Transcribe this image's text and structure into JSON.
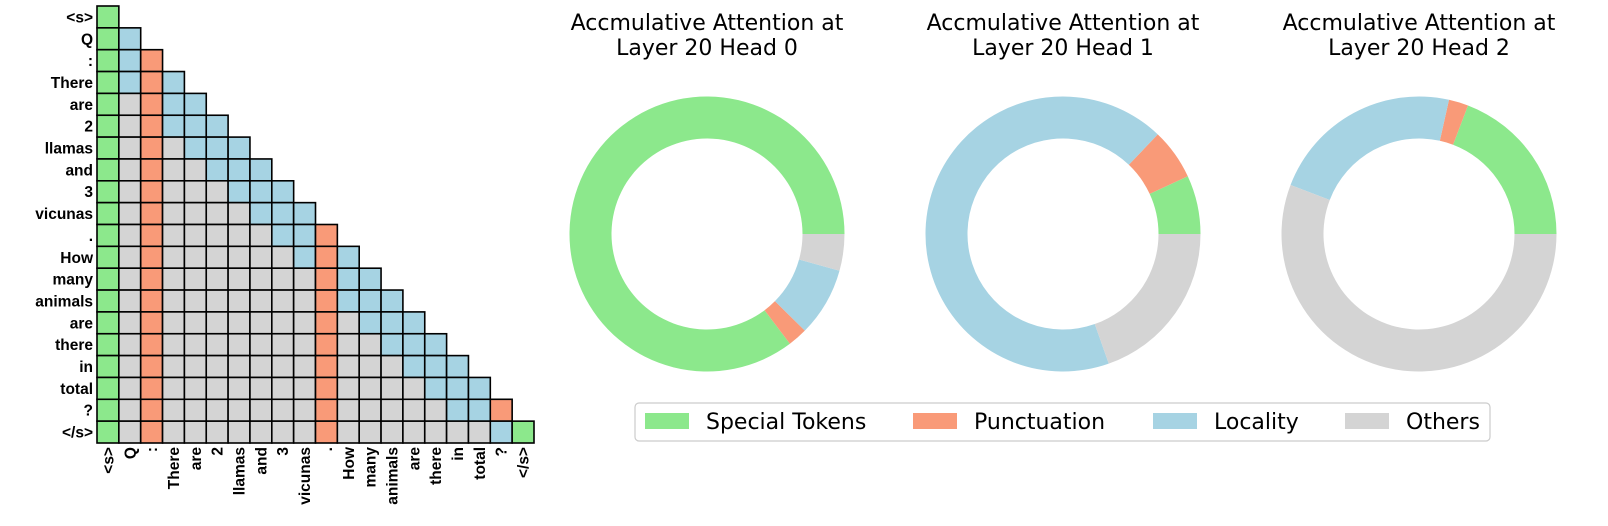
{
  "colors": {
    "special": "#8ce88c",
    "punct": "#f99a78",
    "locality": "#a6d3e3",
    "others": "#d4d4d4",
    "grid_line": "#000000"
  },
  "chart_data": [
    {
      "type": "heatmap",
      "title": "",
      "tokens": [
        "<s>",
        "Q",
        ":",
        "There",
        "are",
        "2",
        "llamas",
        "and",
        "3",
        "vicunas",
        ".",
        "How",
        "many",
        "animals",
        "are",
        "there",
        "in",
        "total",
        "?",
        "</s>"
      ],
      "classes_legend": [
        "special",
        "punct",
        "locality",
        "others"
      ],
      "cells": [
        [
          "special"
        ],
        [
          "special",
          "locality"
        ],
        [
          "special",
          "locality",
          "punct"
        ],
        [
          "special",
          "locality",
          "punct",
          "locality"
        ],
        [
          "special",
          "others",
          "punct",
          "locality",
          "locality"
        ],
        [
          "special",
          "others",
          "punct",
          "locality",
          "locality",
          "locality"
        ],
        [
          "special",
          "others",
          "punct",
          "others",
          "locality",
          "locality",
          "locality"
        ],
        [
          "special",
          "others",
          "punct",
          "others",
          "others",
          "locality",
          "locality",
          "locality"
        ],
        [
          "special",
          "others",
          "punct",
          "others",
          "others",
          "others",
          "locality",
          "locality",
          "locality"
        ],
        [
          "special",
          "others",
          "punct",
          "others",
          "others",
          "others",
          "others",
          "locality",
          "locality",
          "locality"
        ],
        [
          "special",
          "others",
          "punct",
          "others",
          "others",
          "others",
          "others",
          "others",
          "locality",
          "locality",
          "punct"
        ],
        [
          "special",
          "others",
          "punct",
          "others",
          "others",
          "others",
          "others",
          "others",
          "others",
          "locality",
          "punct",
          "locality"
        ],
        [
          "special",
          "others",
          "punct",
          "others",
          "others",
          "others",
          "others",
          "others",
          "others",
          "others",
          "punct",
          "locality",
          "locality"
        ],
        [
          "special",
          "others",
          "punct",
          "others",
          "others",
          "others",
          "others",
          "others",
          "others",
          "others",
          "punct",
          "locality",
          "locality",
          "locality"
        ],
        [
          "special",
          "others",
          "punct",
          "others",
          "others",
          "others",
          "others",
          "others",
          "others",
          "others",
          "punct",
          "others",
          "locality",
          "locality",
          "locality"
        ],
        [
          "special",
          "others",
          "punct",
          "others",
          "others",
          "others",
          "others",
          "others",
          "others",
          "others",
          "punct",
          "others",
          "others",
          "locality",
          "locality",
          "locality"
        ],
        [
          "special",
          "others",
          "punct",
          "others",
          "others",
          "others",
          "others",
          "others",
          "others",
          "others",
          "punct",
          "others",
          "others",
          "others",
          "locality",
          "locality",
          "locality"
        ],
        [
          "special",
          "others",
          "punct",
          "others",
          "others",
          "others",
          "others",
          "others",
          "others",
          "others",
          "punct",
          "others",
          "others",
          "others",
          "others",
          "locality",
          "locality",
          "locality"
        ],
        [
          "special",
          "others",
          "punct",
          "others",
          "others",
          "others",
          "others",
          "others",
          "others",
          "others",
          "punct",
          "others",
          "others",
          "others",
          "others",
          "others",
          "locality",
          "locality",
          "punct"
        ],
        [
          "special",
          "others",
          "punct",
          "others",
          "others",
          "others",
          "others",
          "others",
          "others",
          "others",
          "punct",
          "others",
          "others",
          "others",
          "others",
          "others",
          "others",
          "others",
          "locality",
          "special"
        ]
      ]
    },
    {
      "type": "pie",
      "title": "Accmulative Attention at\nLayer 20 Head 0",
      "labels": [
        "Special Tokens",
        "Punctuation",
        "Locality",
        "Others"
      ],
      "values": [
        85.3,
        2.3,
        8.1,
        4.3
      ],
      "start_angle_deg": 0,
      "direction": "counterclockwise"
    },
    {
      "type": "pie",
      "title": "Accmulative Attention at\nLayer 20 Head 1",
      "labels": [
        "Special Tokens",
        "Punctuation",
        "Locality",
        "Others"
      ],
      "values": [
        6.9,
        6.0,
        67.5,
        19.6
      ],
      "start_angle_deg": 0,
      "direction": "counterclockwise"
    },
    {
      "type": "pie",
      "title": "Accmulative Attention at\nLayer 20 Head 2",
      "labels": [
        "Special Tokens",
        "Punctuation",
        "Locality",
        "Others"
      ],
      "values": [
        19.2,
        2.3,
        22.7,
        55.8
      ],
      "start_angle_deg": 0,
      "direction": "counterclockwise"
    }
  ],
  "legend": {
    "placement": "bottom-center",
    "items": [
      {
        "label": "Special Tokens",
        "color_key": "special"
      },
      {
        "label": "Punctuation",
        "color_key": "punct"
      },
      {
        "label": "Locality",
        "color_key": "locality"
      },
      {
        "label": "Others",
        "color_key": "others"
      }
    ]
  }
}
